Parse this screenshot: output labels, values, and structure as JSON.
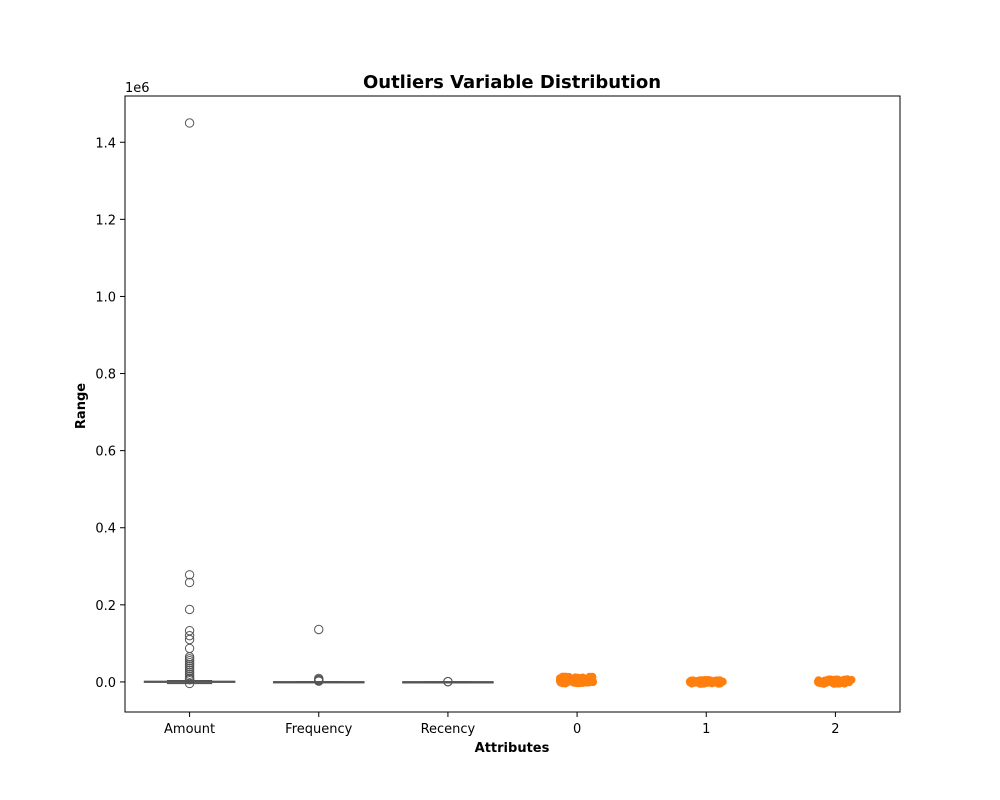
{
  "chart_data": {
    "type": "boxplot",
    "title": "Outliers Variable Distribution",
    "xlabel": "Attributes",
    "ylabel": "Range",
    "y_offset_label": "1e6",
    "ylim": [
      -0.078,
      1.52
    ],
    "y_ticks": [
      0.0,
      0.2,
      0.4,
      0.6,
      0.8,
      1.0,
      1.2,
      1.4
    ],
    "y_tick_labels": [
      "0.0",
      "0.2",
      "0.4",
      "0.6",
      "0.8",
      "1.0",
      "1.2",
      "1.4"
    ],
    "categories": [
      "Amount",
      "Frequency",
      "Recency",
      "0",
      "1",
      "2"
    ],
    "grid": false,
    "boxes": [
      {
        "category": "Amount",
        "q1": 0.0003,
        "median": 0.0007,
        "q3": 0.0016,
        "whisker_low": -0.004,
        "whisker_high": 0.0035,
        "outliers": [
          1.45,
          0.278,
          0.258,
          0.188,
          0.133,
          0.12,
          0.11,
          0.087,
          0.065,
          0.06,
          0.055,
          0.05,
          0.045,
          0.04,
          0.035,
          0.03,
          0.025,
          0.02,
          0.015,
          0.01,
          0.008,
          0.006,
          -0.004
        ]
      },
      {
        "category": "Frequency",
        "q1": 0.0,
        "median": 0.0001,
        "q3": 0.0003,
        "whisker_low": 0.0,
        "whisker_high": 0.0006,
        "outliers": [
          0.136,
          0.009,
          0.006,
          0.004,
          0.002
        ]
      },
      {
        "category": "Recency",
        "q1": 0.0,
        "median": 0.0,
        "q3": 0.0001,
        "whisker_low": 0.0,
        "whisker_high": 0.0002,
        "outliers": [
          0.001,
          0.0005
        ]
      }
    ],
    "strips": [
      {
        "category": "0",
        "color": "#ff7f0e",
        "center": 0.005,
        "spread": 0.018
      },
      {
        "category": "1",
        "color": "#ff7f0e",
        "center": 0.0,
        "spread": 0.01
      },
      {
        "category": "2",
        "color": "#ff7f0e",
        "center": 0.001,
        "spread": 0.012
      }
    ],
    "colors": {
      "box": "#555555",
      "strip": "#ff7f0e"
    }
  }
}
